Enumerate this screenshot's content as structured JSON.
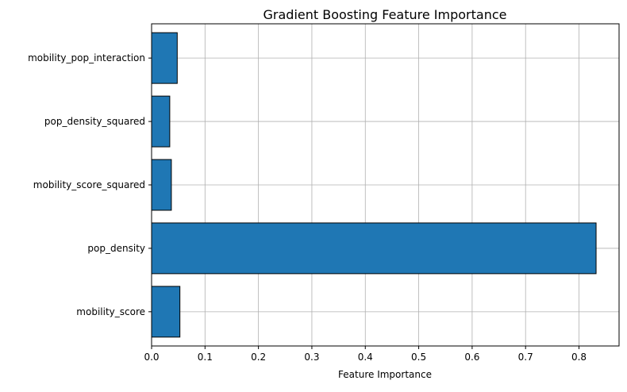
{
  "chart_data": {
    "type": "bar",
    "orientation": "horizontal",
    "title": "Gradient Boosting Feature Importance",
    "xlabel": "Feature Importance",
    "ylabel": "",
    "categories": [
      "mobility_score",
      "pop_density",
      "mobility_score_squared",
      "pop_density_squared",
      "mobility_pop_interaction"
    ],
    "values": [
      0.053,
      0.832,
      0.037,
      0.034,
      0.048
    ],
    "xlim": [
      0,
      0.875
    ],
    "xticks": [
      "0.0",
      "0.1",
      "0.2",
      "0.3",
      "0.4",
      "0.5",
      "0.6",
      "0.7",
      "0.8"
    ],
    "grid": true,
    "legend": "none",
    "bar_color": "#1f77b4",
    "edge_color": "#000000"
  }
}
